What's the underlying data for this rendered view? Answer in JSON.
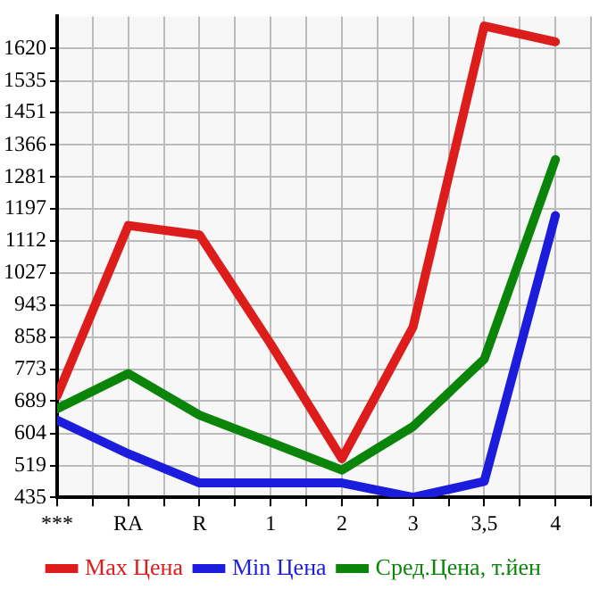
{
  "chart_data": {
    "type": "line",
    "categories": [
      "***",
      "RA",
      "R",
      "1",
      "2",
      "3",
      "3,5",
      "4"
    ],
    "series": [
      {
        "name": "Max Цена",
        "color": "#dd1c1c",
        "values": [
          703,
          1153,
          1128,
          840,
          537,
          885,
          1680,
          1638
        ]
      },
      {
        "name": "Min Цена",
        "color": "#1c1cdd",
        "values": [
          639,
          550,
          473,
          473,
          473,
          435,
          477,
          1179
        ]
      },
      {
        "name": "Сред.Цена, т.йен",
        "color": "#0a850a",
        "values": [
          669,
          762,
          652,
          580,
          507,
          622,
          800,
          1327
        ]
      }
    ],
    "ylim": [
      435,
      1705
    ],
    "yticks": [
      435,
      519,
      604,
      689,
      773,
      858,
      943,
      1027,
      1112,
      1197,
      1281,
      1366,
      1451,
      1535,
      1620
    ],
    "grid": true,
    "legend": "bottom",
    "marker": "none",
    "line_style": "solid"
  }
}
